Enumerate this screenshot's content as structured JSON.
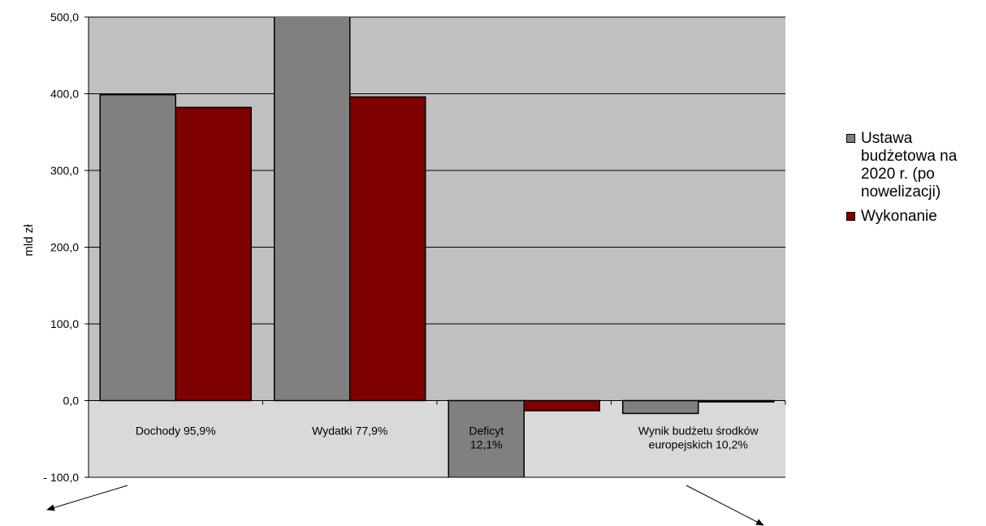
{
  "chart_data": {
    "type": "bar",
    "ylabel": "mld zł",
    "ylim": [
      -100,
      500
    ],
    "yticks": [
      -100,
      0,
      100,
      200,
      300,
      400,
      500
    ],
    "ytick_labels": [
      "- 100,0",
      "0,0",
      "100,0",
      "200,0",
      "300,0",
      "400,0",
      "500,0"
    ],
    "grid": true,
    "categories": [
      "Dochody 95,9%",
      "Wydatki 77,9%",
      "Deficyt\n12,1%",
      "Wynik budżetu środków\neuropejskich  10,2%"
    ],
    "series": [
      {
        "name": " Ustawa budżetowa na 2020 r. (po nowelizacji)",
        "color": "#808080",
        "values": [
          398.7,
          508.1,
          -109.3,
          -16.8
        ]
      },
      {
        "name": "Wykonanie",
        "color": "#7f0000",
        "values": [
          382.2,
          395.9,
          -13.2,
          -1.7
        ]
      }
    ],
    "legend_position": "right",
    "colors": {
      "plot_upper": "#c0c0c0",
      "plot_lower": "#d9d9d9",
      "gridline": "#000000"
    }
  }
}
